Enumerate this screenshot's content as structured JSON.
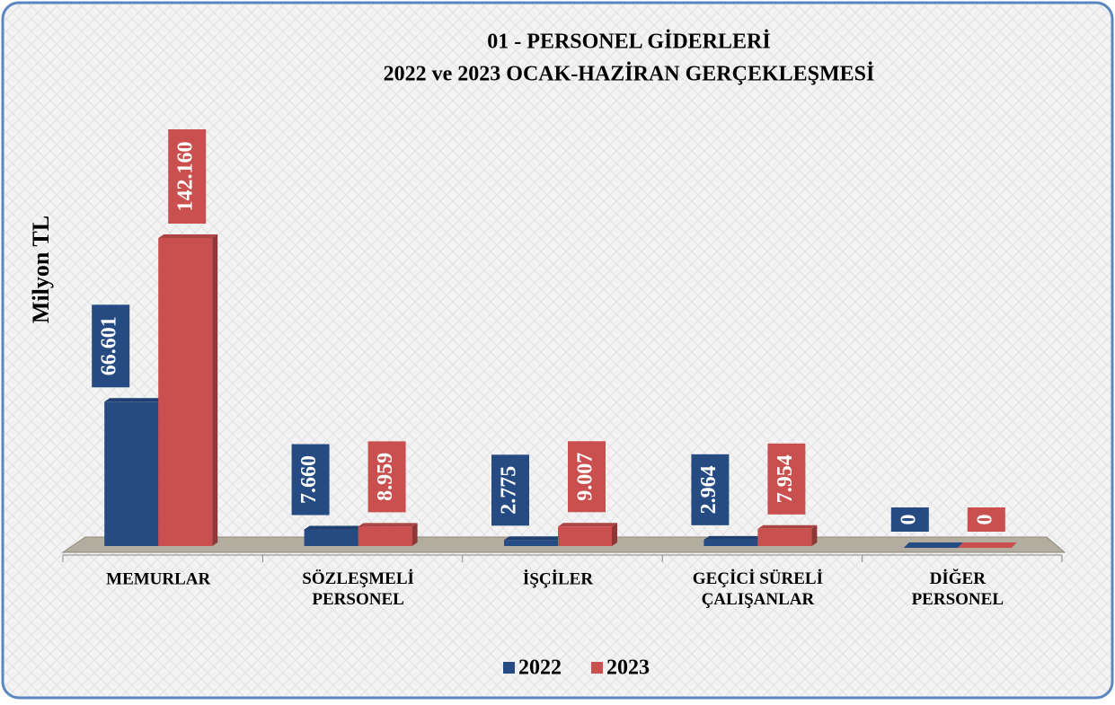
{
  "chart_data": {
    "type": "bar3d",
    "title": "01 - PERSONEL GİDERLERİ",
    "subtitle": "2022 ve 2023 OCAK-HAZİRAN GERÇEKLEŞMESİ",
    "y_label": "Milyon TL",
    "categories": [
      "MEMURLAR",
      "SÖZLEŞMELİ\nPERSONEL",
      "İŞÇİLER",
      "GEÇİCİ SÜRELİ\nÇALIŞANLAR",
      "DİĞER\nPERSONEL"
    ],
    "series": [
      {
        "name": "2022",
        "color": "#264b82",
        "values": [
          66601,
          7660,
          2775,
          2964,
          0
        ],
        "value_labels": [
          "66.601",
          "7.660",
          "2.775",
          "2.964",
          "0"
        ]
      },
      {
        "name": "2023",
        "color": "#c9504f",
        "values": [
          142160,
          8959,
          9007,
          7954,
          0
        ],
        "value_labels": [
          "142.160",
          "8.959",
          "9.007",
          "7.954",
          "0"
        ]
      }
    ],
    "legend": "bottom"
  }
}
